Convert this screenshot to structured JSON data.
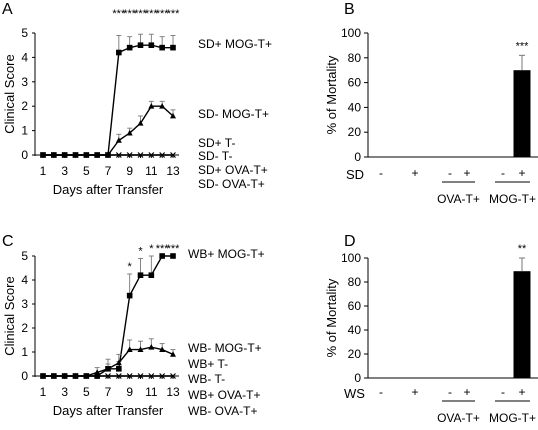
{
  "chart_data": [
    {
      "panel": "A",
      "type": "line",
      "xlabel": "Days after Transfer",
      "ylabel": "Clinical Score",
      "xlim": [
        1,
        13
      ],
      "ylim": [
        0,
        5
      ],
      "x_ticks": [
        1,
        3,
        5,
        7,
        9,
        11,
        13
      ],
      "y_ticks": [
        0,
        1,
        2,
        3,
        4,
        5
      ],
      "x": [
        1,
        2,
        3,
        4,
        5,
        6,
        7,
        8,
        9,
        10,
        11,
        12,
        13
      ],
      "series": [
        {
          "name": "SD+ MOG-T+",
          "marker": "square",
          "values": [
            0,
            0,
            0,
            0,
            0,
            0,
            0,
            4.2,
            4.4,
            4.5,
            4.5,
            4.4,
            4.4
          ],
          "error": [
            0,
            0,
            0,
            0,
            0,
            0,
            0,
            0.7,
            0.45,
            0.45,
            0.45,
            0.45,
            0.5
          ]
        },
        {
          "name": "SD- MOG-T+",
          "marker": "triangle",
          "values": [
            0,
            0,
            0,
            0,
            0,
            0,
            0,
            0.6,
            0.9,
            1.3,
            2.0,
            2.0,
            1.6
          ],
          "error": [
            0,
            0,
            0,
            0,
            0,
            0,
            0,
            0.25,
            0.2,
            0.3,
            0.2,
            0.2,
            0.25
          ]
        },
        {
          "name": "SD+ T-",
          "marker": "x",
          "values": [
            0,
            0,
            0,
            0,
            0,
            0,
            0,
            0,
            0,
            0,
            0,
            0,
            0
          ]
        },
        {
          "name": "SD- T-",
          "marker": "x",
          "values": [
            0,
            0,
            0,
            0,
            0,
            0,
            0,
            0,
            0,
            0,
            0,
            0,
            0
          ]
        },
        {
          "name": "SD+ OVA-T+",
          "marker": "x",
          "values": [
            0,
            0,
            0,
            0,
            0,
            0,
            0,
            0,
            0,
            0,
            0,
            0,
            0
          ]
        },
        {
          "name": "SD- OVA-T+",
          "marker": "x",
          "values": [
            0,
            0,
            0,
            0,
            0,
            0,
            0,
            0,
            0,
            0,
            0,
            0,
            0
          ]
        }
      ],
      "significance": [
        {
          "x": 8,
          "label": "***"
        },
        {
          "x": 9,
          "label": "***"
        },
        {
          "x": 10,
          "label": "***"
        },
        {
          "x": 11,
          "label": "***"
        },
        {
          "x": 12,
          "label": "***"
        },
        {
          "x": 13,
          "label": "***"
        }
      ]
    },
    {
      "panel": "B",
      "type": "bar",
      "ylabel": "% of Mortality",
      "ylim": [
        0,
        100
      ],
      "y_ticks": [
        0,
        20,
        40,
        60,
        80,
        100
      ],
      "factor_label": "SD",
      "signs": [
        "-",
        "+",
        "-",
        "+",
        "-",
        "+"
      ],
      "groups": [
        {
          "label": "",
          "span": [
            0,
            1
          ]
        },
        {
          "label": "OVA-T+",
          "span": [
            2,
            3
          ]
        },
        {
          "label": "MOG-T+",
          "span": [
            4,
            5
          ]
        }
      ],
      "values": [
        0,
        0,
        0,
        0,
        0,
        70
      ],
      "error": [
        0,
        0,
        0,
        0,
        0,
        12
      ],
      "significance": [
        {
          "index": 5,
          "label": "***"
        }
      ]
    },
    {
      "panel": "C",
      "type": "line",
      "xlabel": "Days after Transfer",
      "ylabel": "Clinical Score",
      "xlim": [
        1,
        13
      ],
      "ylim": [
        0,
        5
      ],
      "x_ticks": [
        1,
        3,
        5,
        7,
        9,
        11,
        13
      ],
      "y_ticks": [
        0,
        1,
        2,
        3,
        4,
        5
      ],
      "x": [
        1,
        2,
        3,
        4,
        5,
        6,
        7,
        8,
        9,
        10,
        11,
        12,
        13
      ],
      "series": [
        {
          "name": "WB+ MOG-T+",
          "marker": "square",
          "values": [
            0,
            0,
            0,
            0,
            0,
            0,
            0.3,
            0.3,
            3.35,
            4.2,
            4.2,
            5.0,
            5.0
          ],
          "error": [
            0,
            0,
            0,
            0,
            0,
            0,
            0.2,
            0.3,
            0.9,
            0.7,
            0.8,
            0,
            0
          ]
        },
        {
          "name": "WB- MOG-T+",
          "marker": "triangle",
          "values": [
            0,
            0,
            0,
            0,
            0,
            0.15,
            0.3,
            0.55,
            1.1,
            1.1,
            1.2,
            1.1,
            0.9
          ],
          "error": [
            0,
            0,
            0,
            0,
            0,
            0.2,
            0.4,
            0.35,
            0.4,
            0.35,
            0.35,
            0.25,
            0.2
          ]
        },
        {
          "name": "WB+ T-",
          "marker": "x",
          "values": [
            0,
            0,
            0,
            0,
            0,
            0,
            0,
            0,
            0,
            0,
            0,
            0,
            0
          ]
        },
        {
          "name": "WB- T-",
          "marker": "x",
          "values": [
            0,
            0,
            0,
            0,
            0,
            0,
            0,
            0,
            0,
            0,
            0,
            0,
            0
          ]
        },
        {
          "name": "WB+ OVA-T+",
          "marker": "x",
          "values": [
            0,
            0,
            0,
            0,
            0,
            0,
            0,
            0,
            0,
            0,
            0,
            0,
            0
          ]
        },
        {
          "name": "WB- OVA-T+",
          "marker": "x",
          "values": [
            0,
            0,
            0,
            0,
            0,
            0,
            0,
            0,
            0,
            0,
            0,
            0,
            0
          ]
        }
      ],
      "significance": [
        {
          "x": 9,
          "label": "*"
        },
        {
          "x": 10,
          "label": "*"
        },
        {
          "x": 11,
          "label": "*"
        },
        {
          "x": 12,
          "label": "***"
        },
        {
          "x": 13,
          "label": "***"
        }
      ]
    },
    {
      "panel": "D",
      "type": "bar",
      "ylabel": "% of Mortality",
      "ylim": [
        0,
        100
      ],
      "y_ticks": [
        0,
        20,
        40,
        60,
        80,
        100
      ],
      "factor_label": "WS",
      "signs": [
        "-",
        "+",
        "-",
        "+",
        "-",
        "+"
      ],
      "groups": [
        {
          "label": "",
          "span": [
            0,
            1
          ]
        },
        {
          "label": "OVA-T+",
          "span": [
            2,
            3
          ]
        },
        {
          "label": "MOG-T+",
          "span": [
            4,
            5
          ]
        }
      ],
      "values": [
        0,
        0,
        0,
        0,
        0,
        89
      ],
      "error": [
        0,
        0,
        0,
        0,
        0,
        11
      ],
      "significance": [
        {
          "index": 5,
          "label": "**"
        }
      ]
    }
  ]
}
